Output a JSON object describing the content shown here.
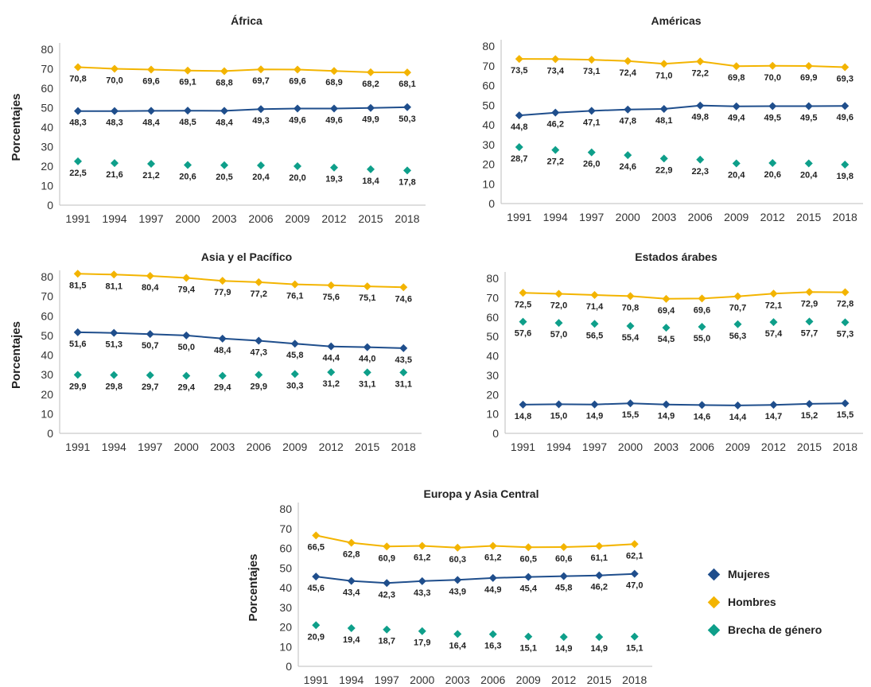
{
  "legend": {
    "items": [
      {
        "label": "Mujeres",
        "color": "#1F4E8C",
        "icon": "diamond-marker"
      },
      {
        "label": "Hombres",
        "color": "#F3B400",
        "icon": "diamond-marker"
      },
      {
        "label": "Brecha de género",
        "color": "#0E9F8A",
        "icon": "diamond-marker"
      }
    ]
  },
  "chart_data": [
    {
      "type": "line",
      "title": "África",
      "xlabel": "",
      "ylabel": "Porcentajes",
      "ylim": [
        0,
        80
      ],
      "yticks": [
        "0",
        "10",
        "20",
        "30",
        "40",
        "50",
        "60",
        "70",
        "80"
      ],
      "x": [
        "1991",
        "1994",
        "1997",
        "2000",
        "2003",
        "2006",
        "2009",
        "2012",
        "2015",
        "2018"
      ],
      "series": [
        {
          "key": "hombres",
          "values": [
            70.8,
            70.0,
            69.6,
            69.1,
            68.8,
            69.7,
            69.6,
            68.9,
            68.2,
            68.1
          ],
          "labels": [
            "70,8",
            "70,0",
            "69,6",
            "69,1",
            "68,8",
            "69,7",
            "69,6",
            "68,9",
            "68,2",
            "68,1"
          ],
          "draw_line": true,
          "color": "#F3B400"
        },
        {
          "key": "mujeres",
          "values": [
            48.3,
            48.3,
            48.4,
            48.5,
            48.4,
            49.3,
            49.6,
            49.6,
            49.9,
            50.3
          ],
          "labels": [
            "48,3",
            "48,3",
            "48,4",
            "48,5",
            "48,4",
            "49,3",
            "49,6",
            "49,6",
            "49,9",
            "50,3"
          ],
          "draw_line": true,
          "color": "#1F4E8C"
        },
        {
          "key": "brecha",
          "values": [
            22.5,
            21.6,
            21.2,
            20.6,
            20.5,
            20.4,
            20.0,
            19.3,
            18.4,
            17.8
          ],
          "labels": [
            "22,5",
            "21,6",
            "21,2",
            "20,6",
            "20,5",
            "20,4",
            "20,0",
            "19,3",
            "18,4",
            "17,8"
          ],
          "draw_line": false,
          "color": "#0E9F8A"
        }
      ]
    },
    {
      "type": "line",
      "title": "Américas",
      "xlabel": "",
      "ylabel": "",
      "ylim": [
        0,
        80
      ],
      "yticks": [
        "0",
        "10",
        "20",
        "30",
        "40",
        "50",
        "60",
        "70",
        "80"
      ],
      "x": [
        "1991",
        "1994",
        "1997",
        "2000",
        "2003",
        "2006",
        "2009",
        "2012",
        "2015",
        "2018"
      ],
      "series": [
        {
          "key": "hombres",
          "values": [
            73.5,
            73.4,
            73.1,
            72.4,
            71.0,
            72.2,
            69.8,
            70.0,
            69.9,
            69.3
          ],
          "labels": [
            "73,5",
            "73,4",
            "73,1",
            "72,4",
            "71,0",
            "72,2",
            "69,8",
            "70,0",
            "69,9",
            "69,3"
          ],
          "draw_line": true,
          "color": "#F3B400"
        },
        {
          "key": "mujeres",
          "values": [
            44.8,
            46.2,
            47.1,
            47.8,
            48.1,
            49.8,
            49.4,
            49.5,
            49.5,
            49.6
          ],
          "labels": [
            "44,8",
            "46,2",
            "47,1",
            "47,8",
            "48,1",
            "49,8",
            "49,4",
            "49,5",
            "49,5",
            "49,6"
          ],
          "draw_line": true,
          "color": "#1F4E8C"
        },
        {
          "key": "brecha",
          "values": [
            28.7,
            27.2,
            26.0,
            24.6,
            22.9,
            22.3,
            20.4,
            20.6,
            20.4,
            19.8
          ],
          "labels": [
            "28,7",
            "27,2",
            "26,0",
            "24,6",
            "22,9",
            "22,3",
            "20,4",
            "20,6",
            "20,4",
            "19,8"
          ],
          "draw_line": false,
          "color": "#0E9F8A"
        }
      ]
    },
    {
      "type": "line",
      "title": "Asia y el Pacífico",
      "xlabel": "",
      "ylabel": "Porcentajes",
      "ylim": [
        0,
        80
      ],
      "yticks": [
        "0",
        "10",
        "20",
        "30",
        "40",
        "50",
        "60",
        "70",
        "80"
      ],
      "x": [
        "1991",
        "1994",
        "1997",
        "2000",
        "2003",
        "2006",
        "2009",
        "2012",
        "2015",
        "2018"
      ],
      "series": [
        {
          "key": "hombres",
          "values": [
            81.5,
            81.1,
            80.4,
            79.4,
            77.9,
            77.2,
            76.1,
            75.6,
            75.1,
            74.6
          ],
          "labels": [
            "81,5",
            "81,1",
            "80,4",
            "79,4",
            "77,9",
            "77,2",
            "76,1",
            "75,6",
            "75,1",
            "74,6"
          ],
          "draw_line": true,
          "color": "#F3B400"
        },
        {
          "key": "mujeres",
          "values": [
            51.6,
            51.3,
            50.7,
            50.0,
            48.4,
            47.3,
            45.8,
            44.4,
            44.0,
            43.5
          ],
          "labels": [
            "51,6",
            "51,3",
            "50,7",
            "50,0",
            "48,4",
            "47,3",
            "45,8",
            "44,4",
            "44,0",
            "43,5"
          ],
          "draw_line": true,
          "color": "#1F4E8C"
        },
        {
          "key": "brecha",
          "values": [
            29.9,
            29.8,
            29.7,
            29.4,
            29.4,
            29.9,
            30.3,
            31.2,
            31.1,
            31.1
          ],
          "labels": [
            "29,9",
            "29,8",
            "29,7",
            "29,4",
            "29,4",
            "29,9",
            "30,3",
            "31,2",
            "31,1",
            "31,1"
          ],
          "draw_line": false,
          "color": "#0E9F8A"
        }
      ]
    },
    {
      "type": "line",
      "title": "Estados árabes",
      "xlabel": "",
      "ylabel": "",
      "ylim": [
        0,
        80
      ],
      "yticks": [
        "0",
        "10",
        "20",
        "30",
        "40",
        "50",
        "60",
        "70",
        "80"
      ],
      "x": [
        "1991",
        "1994",
        "1997",
        "2000",
        "2003",
        "2006",
        "2009",
        "2012",
        "2015",
        "2018"
      ],
      "series": [
        {
          "key": "hombres",
          "values": [
            72.5,
            72.0,
            71.4,
            70.8,
            69.4,
            69.6,
            70.7,
            72.1,
            72.9,
            72.8
          ],
          "labels": [
            "72,5",
            "72,0",
            "71,4",
            "70,8",
            "69,4",
            "69,6",
            "70,7",
            "72,1",
            "72,9",
            "72,8"
          ],
          "draw_line": true,
          "color": "#F3B400"
        },
        {
          "key": "brecha",
          "values": [
            57.6,
            57.0,
            56.5,
            55.4,
            54.5,
            55.0,
            56.3,
            57.4,
            57.7,
            57.3
          ],
          "labels": [
            "57,6",
            "57,0",
            "56,5",
            "55,4",
            "54,5",
            "55,0",
            "56,3",
            "57,4",
            "57,7",
            "57,3"
          ],
          "draw_line": false,
          "color": "#0E9F8A"
        },
        {
          "key": "mujeres",
          "values": [
            14.8,
            15.0,
            14.9,
            15.5,
            14.9,
            14.6,
            14.4,
            14.7,
            15.2,
            15.5
          ],
          "labels": [
            "14,8",
            "15,0",
            "14,9",
            "15,5",
            "14,9",
            "14,6",
            "14,4",
            "14,7",
            "15,2",
            "15,5"
          ],
          "draw_line": true,
          "color": "#1F4E8C"
        }
      ]
    },
    {
      "type": "line",
      "title": "Europa y Asia Central",
      "xlabel": "",
      "ylabel": "Porcentajes",
      "ylim": [
        0,
        80
      ],
      "yticks": [
        "0",
        "10",
        "20",
        "30",
        "40",
        "50",
        "60",
        "70",
        "80"
      ],
      "x": [
        "1991",
        "1994",
        "1997",
        "2000",
        "2003",
        "2006",
        "2009",
        "2012",
        "2015",
        "2018"
      ],
      "series": [
        {
          "key": "hombres",
          "values": [
            66.5,
            62.8,
            60.9,
            61.2,
            60.3,
            61.2,
            60.5,
            60.6,
            61.1,
            62.1
          ],
          "labels": [
            "66,5",
            "62,8",
            "60,9",
            "61,2",
            "60,3",
            "61,2",
            "60,5",
            "60,6",
            "61,1",
            "62,1"
          ],
          "draw_line": true,
          "color": "#F3B400"
        },
        {
          "key": "mujeres",
          "values": [
            45.6,
            43.4,
            42.3,
            43.3,
            43.9,
            44.9,
            45.4,
            45.8,
            46.2,
            47.0
          ],
          "labels": [
            "45,6",
            "43,4",
            "42,3",
            "43,3",
            "43,9",
            "44,9",
            "45,4",
            "45,8",
            "46,2",
            "47,0"
          ],
          "draw_line": true,
          "color": "#1F4E8C"
        },
        {
          "key": "brecha",
          "values": [
            20.9,
            19.4,
            18.7,
            17.9,
            16.4,
            16.3,
            15.1,
            14.9,
            14.9,
            15.1
          ],
          "labels": [
            "20,9",
            "19,4",
            "18,7",
            "17,9",
            "16,4",
            "16,3",
            "15,1",
            "14,9",
            "14,9",
            "15,1"
          ],
          "draw_line": false,
          "color": "#0E9F8A"
        }
      ]
    }
  ]
}
